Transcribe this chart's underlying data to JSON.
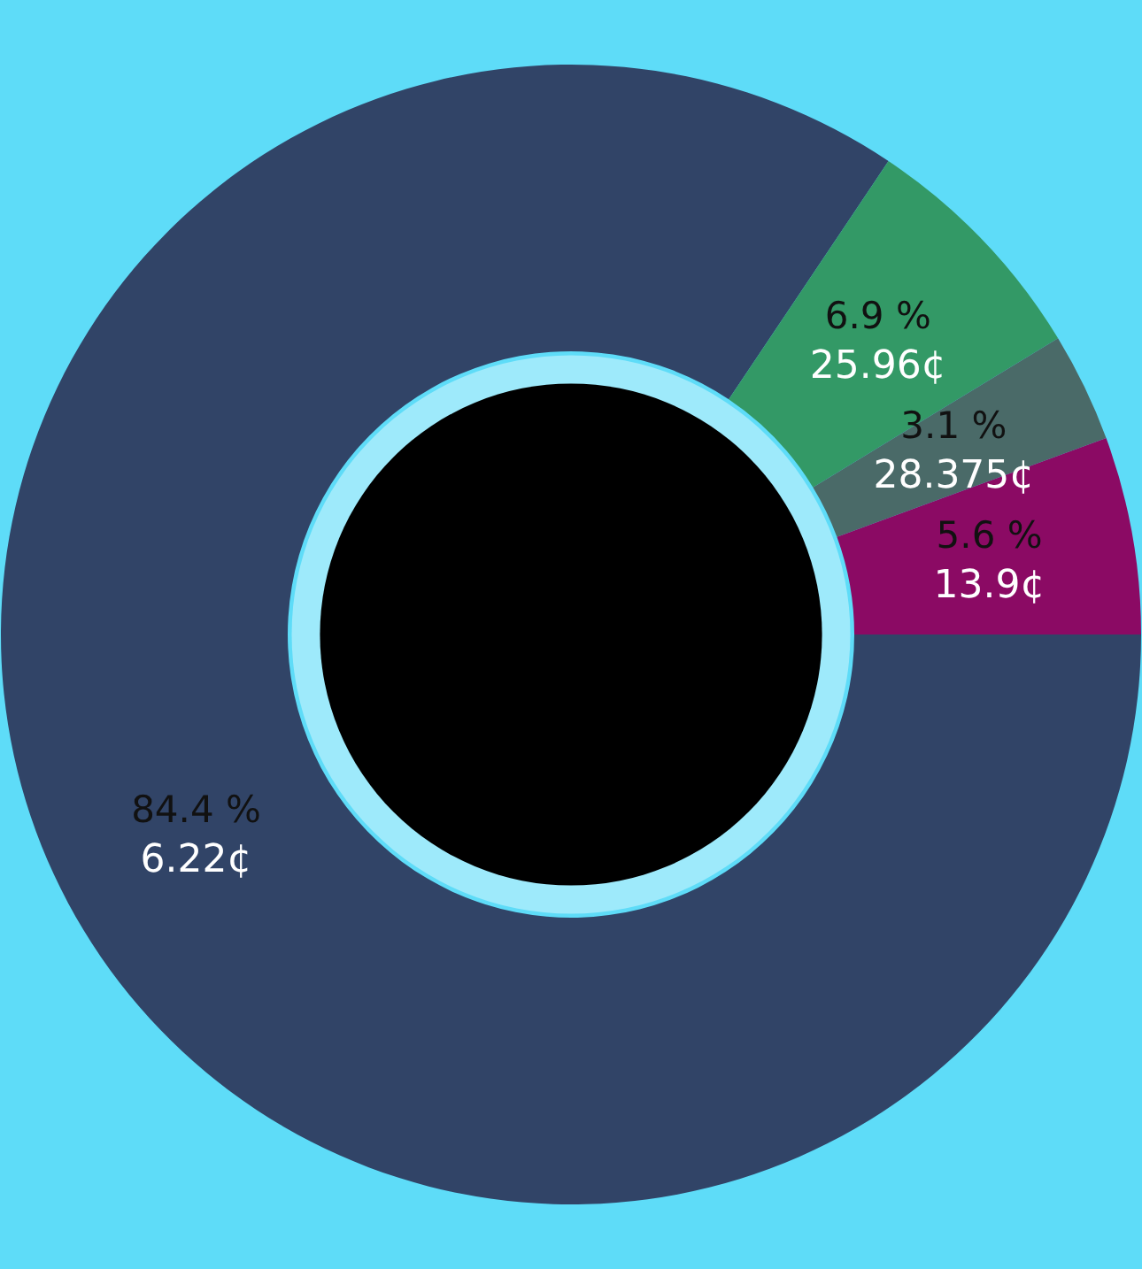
{
  "chart_data": {
    "type": "donut",
    "categories": [
      null,
      null,
      null,
      null
    ],
    "values": [
      84.4,
      6.9,
      3.1,
      5.6
    ],
    "colors": [
      "#314467",
      "#339966",
      "#4a6a68",
      "#8b0a64"
    ],
    "value_labels": [
      "84.4 %",
      "6.9 %",
      "3.1 %",
      "5.6 %"
    ],
    "annotations": [
      "6.22¢",
      "25.96¢",
      "28.375¢",
      "13.9¢"
    ]
  }
}
